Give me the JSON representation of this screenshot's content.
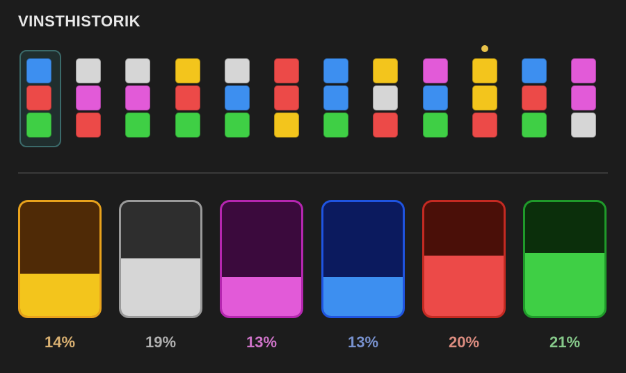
{
  "title": "VINSTHISTORIK",
  "colors": {
    "blue": "#3d8ff0",
    "red": "#ec4a48",
    "green": "#3fcf45",
    "white": "#d6d6d6",
    "pink": "#e25ad8",
    "yellow": "#f3c51c"
  },
  "history": [
    {
      "cells": [
        "blue",
        "red",
        "green"
      ],
      "selected": true
    },
    {
      "cells": [
        "white",
        "pink",
        "red"
      ]
    },
    {
      "cells": [
        "white",
        "pink",
        "green"
      ]
    },
    {
      "cells": [
        "yellow",
        "red",
        "green"
      ]
    },
    {
      "cells": [
        "white",
        "blue",
        "green"
      ]
    },
    {
      "cells": [
        "red",
        "red",
        "yellow"
      ]
    },
    {
      "cells": [
        "blue",
        "blue",
        "green"
      ]
    },
    {
      "cells": [
        "yellow",
        "white",
        "red"
      ]
    },
    {
      "cells": [
        "pink",
        "blue",
        "green"
      ]
    },
    {
      "cells": [
        "yellow",
        "yellow",
        "red"
      ],
      "marked": true
    },
    {
      "cells": [
        "blue",
        "red",
        "green"
      ]
    },
    {
      "cells": [
        "pink",
        "pink",
        "white"
      ]
    }
  ],
  "stats": [
    {
      "color": "yellow",
      "label": "14%",
      "value": 0.14,
      "border": "#e8a21c",
      "empty": "#4f2a06",
      "text": "#d9b071"
    },
    {
      "color": "white",
      "label": "19%",
      "value": 0.19,
      "border": "#9a9a9a",
      "empty": "#2e2e2e",
      "text": "#b0b0b0"
    },
    {
      "color": "pink",
      "label": "13%",
      "value": 0.13,
      "border": "#b526b0",
      "empty": "#3b0a3d",
      "text": "#cf74c9"
    },
    {
      "color": "blue",
      "label": "13%",
      "value": 0.13,
      "border": "#1f54e0",
      "empty": "#0b1a5e",
      "text": "#7892cf"
    },
    {
      "color": "red",
      "label": "20%",
      "value": 0.2,
      "border": "#c42a22",
      "empty": "#4a0f08",
      "text": "#dd8d80"
    },
    {
      "color": "green",
      "label": "21%",
      "value": 0.21,
      "border": "#1f9a2a",
      "empty": "#0b2f0b",
      "text": "#86c98a"
    }
  ]
}
